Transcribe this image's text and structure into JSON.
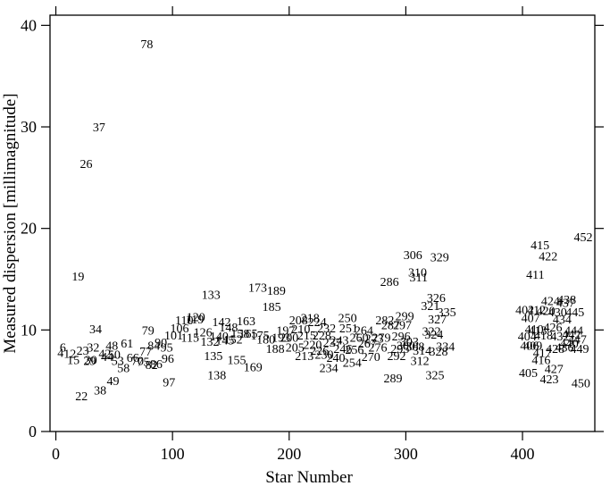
{
  "chart_data": {
    "type": "scatter",
    "marker": "point-labels",
    "xlabel": "Star Number",
    "ylabel": "Measured dispersion [millimagnitude]",
    "xlim": [
      -5,
      462
    ],
    "ylim": [
      0,
      41
    ],
    "x_ticks": [
      "0",
      "100",
      "200",
      "300",
      "400"
    ],
    "y_ticks": [
      "0",
      "10",
      "20",
      "30",
      "40"
    ],
    "x_tick_values": [
      0,
      100,
      200,
      300,
      400
    ],
    "y_tick_values": [
      0,
      10,
      20,
      30,
      40
    ],
    "grid": false,
    "points": [
      {
        "label": "78",
        "x": 78,
        "y": 38.2
      },
      {
        "label": "37",
        "x": 37,
        "y": 30.0
      },
      {
        "label": "26",
        "x": 26,
        "y": 26.4
      },
      {
        "label": "19",
        "x": 19,
        "y": 15.3
      },
      {
        "label": "34",
        "x": 34,
        "y": 10.1
      },
      {
        "label": "79",
        "x": 79,
        "y": 10.0
      },
      {
        "label": "6",
        "x": 6,
        "y": 8.3
      },
      {
        "label": "4",
        "x": 4,
        "y": 7.8
      },
      {
        "label": "12",
        "x": 12,
        "y": 7.7
      },
      {
        "label": "15",
        "x": 15,
        "y": 7.1
      },
      {
        "label": "22",
        "x": 22,
        "y": 3.5
      },
      {
        "label": "23",
        "x": 23,
        "y": 8.0
      },
      {
        "label": "29",
        "x": 29,
        "y": 7.0
      },
      {
        "label": "30",
        "x": 30,
        "y": 7.1
      },
      {
        "label": "32",
        "x": 32,
        "y": 8.3
      },
      {
        "label": "38",
        "x": 38,
        "y": 4.1
      },
      {
        "label": "42",
        "x": 42,
        "y": 7.7
      },
      {
        "label": "44",
        "x": 44,
        "y": 7.4
      },
      {
        "label": "48",
        "x": 48,
        "y": 8.5
      },
      {
        "label": "49",
        "x": 49,
        "y": 5.0
      },
      {
        "label": "50",
        "x": 50,
        "y": 7.6
      },
      {
        "label": "53",
        "x": 53,
        "y": 7.0
      },
      {
        "label": "58",
        "x": 58,
        "y": 6.3
      },
      {
        "label": "61",
        "x": 61,
        "y": 8.7
      },
      {
        "label": "66",
        "x": 66,
        "y": 7.3
      },
      {
        "label": "70",
        "x": 70,
        "y": 7.0
      },
      {
        "label": "75",
        "x": 75,
        "y": 6.9
      },
      {
        "label": "77",
        "x": 77,
        "y": 7.9
      },
      {
        "label": "82",
        "x": 82,
        "y": 6.6
      },
      {
        "label": "84",
        "x": 84,
        "y": 8.5
      },
      {
        "label": "86",
        "x": 86,
        "y": 6.7
      },
      {
        "label": "90",
        "x": 90,
        "y": 8.8
      },
      {
        "label": "95",
        "x": 95,
        "y": 8.3
      },
      {
        "label": "96",
        "x": 96,
        "y": 7.2
      },
      {
        "label": "97",
        "x": 97,
        "y": 4.9
      },
      {
        "label": "101",
        "x": 101,
        "y": 9.5
      },
      {
        "label": "106",
        "x": 106,
        "y": 10.2
      },
      {
        "label": "110",
        "x": 110,
        "y": 11.0
      },
      {
        "label": "115",
        "x": 115,
        "y": 9.3
      },
      {
        "label": "119",
        "x": 119,
        "y": 11.1
      },
      {
        "label": "120",
        "x": 120,
        "y": 11.3
      },
      {
        "label": "126",
        "x": 126,
        "y": 9.8
      },
      {
        "label": "132",
        "x": 132,
        "y": 8.9
      },
      {
        "label": "133",
        "x": 133,
        "y": 13.5
      },
      {
        "label": "135",
        "x": 135,
        "y": 7.5
      },
      {
        "label": "138",
        "x": 138,
        "y": 5.6
      },
      {
        "label": "140",
        "x": 140,
        "y": 9.4
      },
      {
        "label": "142",
        "x": 142,
        "y": 10.8
      },
      {
        "label": "145",
        "x": 145,
        "y": 9.0
      },
      {
        "label": "148",
        "x": 148,
        "y": 10.3
      },
      {
        "label": "152",
        "x": 152,
        "y": 9.1
      },
      {
        "label": "155",
        "x": 155,
        "y": 7.1
      },
      {
        "label": "158",
        "x": 158,
        "y": 9.7
      },
      {
        "label": "163",
        "x": 163,
        "y": 10.9
      },
      {
        "label": "165",
        "x": 165,
        "y": 9.7
      },
      {
        "label": "169",
        "x": 169,
        "y": 6.4
      },
      {
        "label": "173",
        "x": 173,
        "y": 14.2
      },
      {
        "label": "175",
        "x": 175,
        "y": 9.5
      },
      {
        "label": "180",
        "x": 180,
        "y": 9.1
      },
      {
        "label": "185",
        "x": 185,
        "y": 12.3
      },
      {
        "label": "188",
        "x": 188,
        "y": 8.2
      },
      {
        "label": "189",
        "x": 189,
        "y": 13.9
      },
      {
        "label": "193",
        "x": 193,
        "y": 9.3
      },
      {
        "label": "197",
        "x": 197,
        "y": 10.0
      },
      {
        "label": "200",
        "x": 200,
        "y": 9.3
      },
      {
        "label": "205",
        "x": 205,
        "y": 8.3
      },
      {
        "label": "208",
        "x": 208,
        "y": 11.0
      },
      {
        "label": "210",
        "x": 210,
        "y": 10.1
      },
      {
        "label": "213",
        "x": 213,
        "y": 7.5
      },
      {
        "label": "215",
        "x": 215,
        "y": 9.5
      },
      {
        "label": "218",
        "x": 218,
        "y": 11.2
      },
      {
        "label": "220",
        "x": 220,
        "y": 8.6
      },
      {
        "label": "224",
        "x": 224,
        "y": 10.8
      },
      {
        "label": "226",
        "x": 226,
        "y": 8.0
      },
      {
        "label": "228",
        "x": 228,
        "y": 9.5
      },
      {
        "label": "230",
        "x": 230,
        "y": 7.6
      },
      {
        "label": "232",
        "x": 232,
        "y": 10.2
      },
      {
        "label": "234",
        "x": 234,
        "y": 6.3
      },
      {
        "label": "237",
        "x": 237,
        "y": 8.8
      },
      {
        "label": "240",
        "x": 240,
        "y": 7.3
      },
      {
        "label": "243",
        "x": 243,
        "y": 9.0
      },
      {
        "label": "246",
        "x": 246,
        "y": 8.2
      },
      {
        "label": "250",
        "x": 250,
        "y": 11.2
      },
      {
        "label": "251",
        "x": 251,
        "y": 10.2
      },
      {
        "label": "254",
        "x": 254,
        "y": 6.8
      },
      {
        "label": "256",
        "x": 256,
        "y": 8.1
      },
      {
        "label": "260",
        "x": 260,
        "y": 9.3
      },
      {
        "label": "264",
        "x": 264,
        "y": 10.0
      },
      {
        "label": "267",
        "x": 267,
        "y": 8.7
      },
      {
        "label": "270",
        "x": 270,
        "y": 7.4
      },
      {
        "label": "273",
        "x": 273,
        "y": 9.2
      },
      {
        "label": "276",
        "x": 276,
        "y": 8.3
      },
      {
        "label": "279",
        "x": 279,
        "y": 9.3
      },
      {
        "label": "282",
        "x": 282,
        "y": 11.0
      },
      {
        "label": "286",
        "x": 286,
        "y": 14.8
      },
      {
        "label": "287",
        "x": 287,
        "y": 10.5
      },
      {
        "label": "289",
        "x": 289,
        "y": 5.3
      },
      {
        "label": "292",
        "x": 292,
        "y": 7.5
      },
      {
        "label": "295",
        "x": 295,
        "y": 8.2
      },
      {
        "label": "296",
        "x": 296,
        "y": 9.4
      },
      {
        "label": "297",
        "x": 297,
        "y": 10.5
      },
      {
        "label": "299",
        "x": 299,
        "y": 11.4
      },
      {
        "label": "300",
        "x": 300,
        "y": 8.5
      },
      {
        "label": "303",
        "x": 303,
        "y": 8.9
      },
      {
        "label": "306",
        "x": 306,
        "y": 17.4
      },
      {
        "label": "308",
        "x": 308,
        "y": 8.4
      },
      {
        "label": "310",
        "x": 310,
        "y": 15.7
      },
      {
        "label": "311",
        "x": 311,
        "y": 15.2
      },
      {
        "label": "312",
        "x": 312,
        "y": 7.0
      },
      {
        "label": "314",
        "x": 314,
        "y": 8.0
      },
      {
        "label": "321",
        "x": 321,
        "y": 12.4
      },
      {
        "label": "322",
        "x": 322,
        "y": 9.9
      },
      {
        "label": "324",
        "x": 324,
        "y": 9.6
      },
      {
        "label": "325",
        "x": 325,
        "y": 5.6
      },
      {
        "label": "326",
        "x": 326,
        "y": 13.2
      },
      {
        "label": "327",
        "x": 327,
        "y": 11.1
      },
      {
        "label": "328",
        "x": 328,
        "y": 7.9
      },
      {
        "label": "329",
        "x": 329,
        "y": 17.2
      },
      {
        "label": "334",
        "x": 334,
        "y": 8.4
      },
      {
        "label": "335",
        "x": 335,
        "y": 11.8
      },
      {
        "label": "402",
        "x": 402,
        "y": 12.0
      },
      {
        "label": "404",
        "x": 404,
        "y": 9.4
      },
      {
        "label": "405",
        "x": 405,
        "y": 5.8
      },
      {
        "label": "406",
        "x": 406,
        "y": 8.5
      },
      {
        "label": "407",
        "x": 407,
        "y": 11.2
      },
      {
        "label": "409",
        "x": 409,
        "y": 8.5
      },
      {
        "label": "410",
        "x": 410,
        "y": 10.1
      },
      {
        "label": "411",
        "x": 411,
        "y": 15.5
      },
      {
        "label": "412",
        "x": 412,
        "y": 12.0
      },
      {
        "label": "413",
        "x": 413,
        "y": 10.0
      },
      {
        "label": "415",
        "x": 415,
        "y": 18.4
      },
      {
        "label": "416",
        "x": 416,
        "y": 7.1
      },
      {
        "label": "417",
        "x": 417,
        "y": 7.8
      },
      {
        "label": "418",
        "x": 418,
        "y": 9.5
      },
      {
        "label": "420",
        "x": 420,
        "y": 11.9
      },
      {
        "label": "422",
        "x": 422,
        "y": 17.3
      },
      {
        "label": "423",
        "x": 423,
        "y": 5.2
      },
      {
        "label": "424",
        "x": 424,
        "y": 12.9
      },
      {
        "label": "426",
        "x": 426,
        "y": 10.3
      },
      {
        "label": "427",
        "x": 427,
        "y": 6.2
      },
      {
        "label": "428",
        "x": 428,
        "y": 8.2
      },
      {
        "label": "430",
        "x": 430,
        "y": 11.8
      },
      {
        "label": "432",
        "x": 432,
        "y": 9.4
      },
      {
        "label": "434",
        "x": 434,
        "y": 11.1
      },
      {
        "label": "436",
        "x": 436,
        "y": 8.3
      },
      {
        "label": "437",
        "x": 437,
        "y": 12.7
      },
      {
        "label": "438",
        "x": 438,
        "y": 13.0
      },
      {
        "label": "440",
        "x": 440,
        "y": 8.7
      },
      {
        "label": "442",
        "x": 442,
        "y": 9.6
      },
      {
        "label": "444",
        "x": 444,
        "y": 10.0
      },
      {
        "label": "445",
        "x": 445,
        "y": 11.8
      },
      {
        "label": "447",
        "x": 447,
        "y": 9.1
      },
      {
        "label": "449",
        "x": 449,
        "y": 8.2
      },
      {
        "label": "450",
        "x": 450,
        "y": 4.8
      },
      {
        "label": "452",
        "x": 452,
        "y": 19.2
      }
    ]
  }
}
